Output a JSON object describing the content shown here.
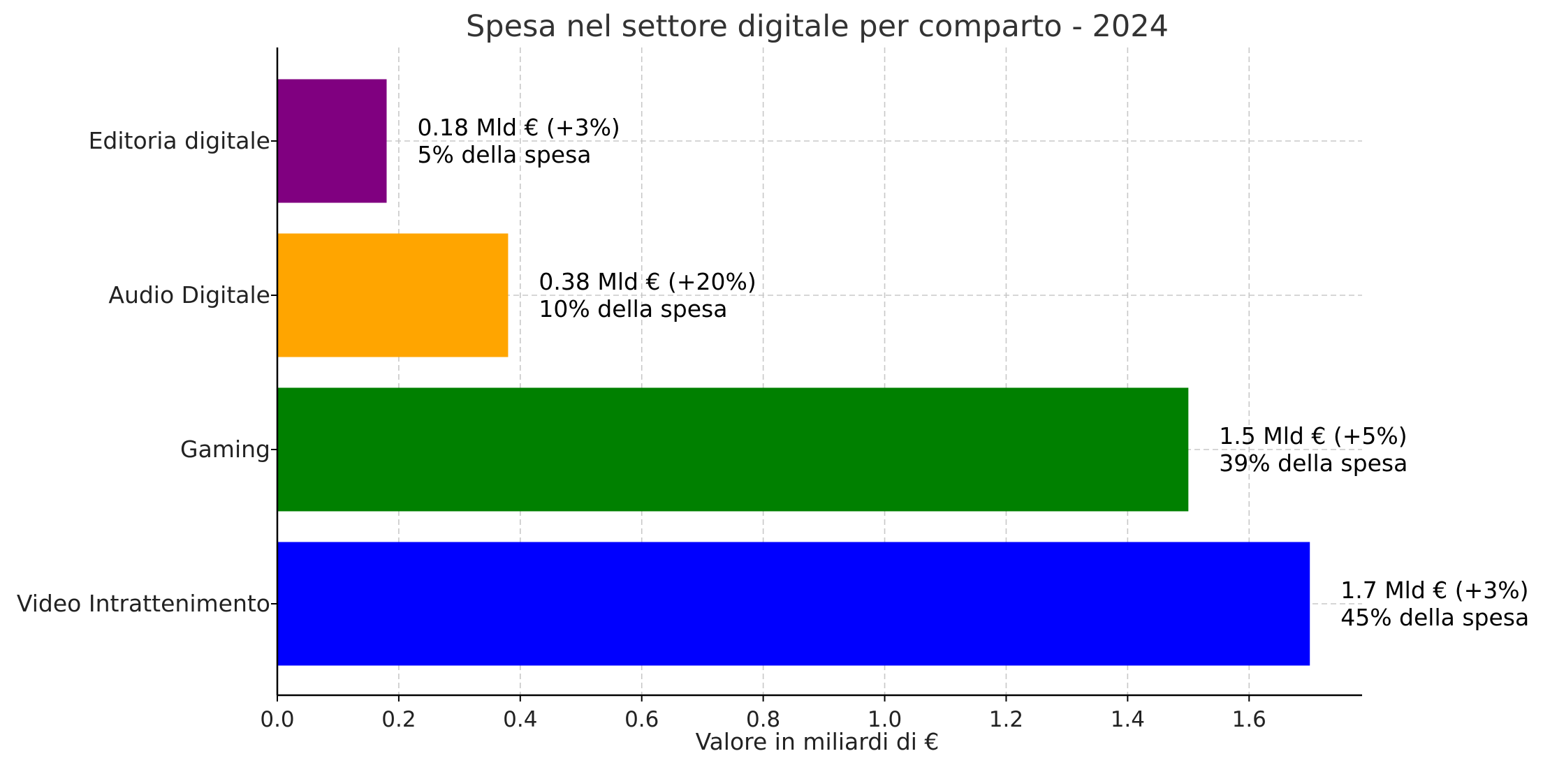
{
  "chart_data": {
    "type": "bar",
    "orientation": "horizontal",
    "title": "Spesa nel settore digitale per comparto - 2024",
    "xlabel": "Valore in miliardi di €",
    "ylabel": "",
    "xlim": [
      0,
      1.786
    ],
    "xticks": [
      0.0,
      0.2,
      0.4,
      0.6,
      0.8,
      1.0,
      1.2,
      1.4,
      1.6
    ],
    "xtick_labels": [
      "0.0",
      "0.2",
      "0.4",
      "0.6",
      "0.8",
      "1.0",
      "1.2",
      "1.4",
      "1.6"
    ],
    "grid": true,
    "categories": [
      "Video Intrattenimento",
      "Gaming",
      "Audio Digitale",
      "Editoria digitale"
    ],
    "values": [
      1.7,
      1.5,
      0.38,
      0.18
    ],
    "colors": [
      "#0000ff",
      "#008000",
      "#ffa500",
      "#800080"
    ],
    "data_labels": [
      {
        "line1": "1.7 Mld € (+3%)",
        "line2": "45% della spesa"
      },
      {
        "line1": "1.5 Mld € (+5%)",
        "line2": "39% della spesa"
      },
      {
        "line1": "0.38 Mld € (+20%)",
        "line2": "10% della spesa"
      },
      {
        "line1": "0.18 Mld € (+3%)",
        "line2": "5% della spesa"
      }
    ]
  }
}
